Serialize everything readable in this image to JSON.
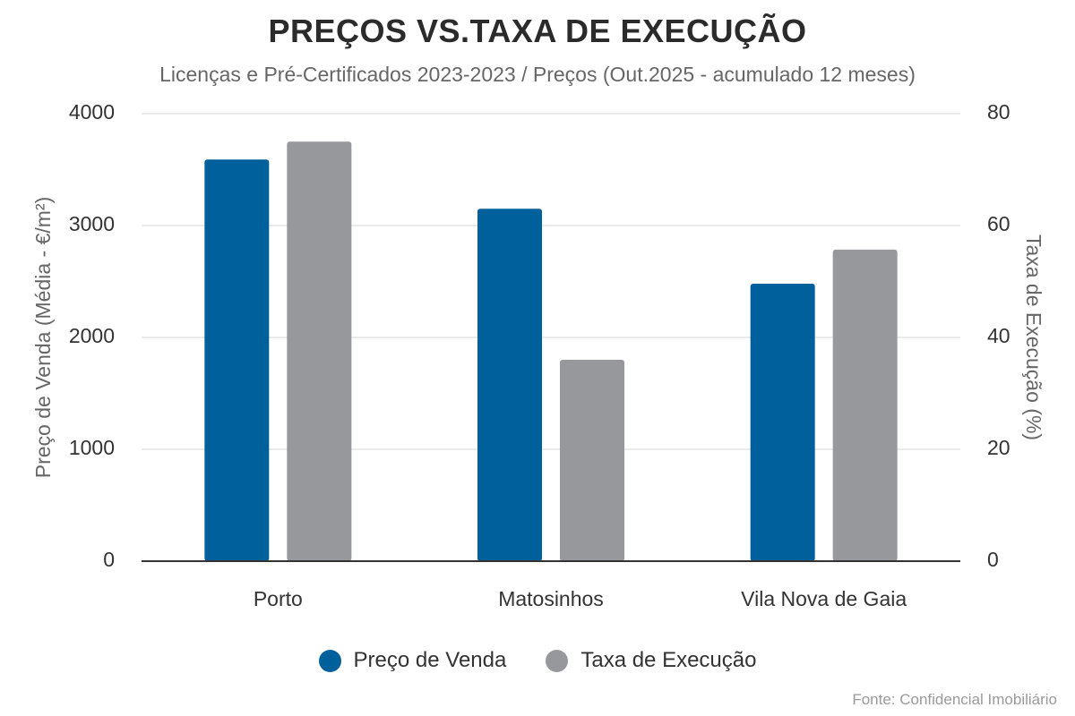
{
  "chart_data": {
    "type": "bar",
    "title": "PREÇOS VS.TAXA DE EXECUÇÃO",
    "subtitle": "Licenças e Pré-Certificados 2023-2023 / Preços (Out.2025 - acumulado 12 meses)",
    "categories": [
      "Porto",
      "Matosinhos",
      "Vila Nova de Gaia"
    ],
    "series": [
      {
        "name": "Preço de Venda",
        "axis": "left",
        "color": "#00609c",
        "values": [
          3590,
          3150,
          2480
        ]
      },
      {
        "name": "Taxa de Execução",
        "axis": "right",
        "color": "#97989c",
        "values": [
          75,
          36,
          55.7
        ]
      }
    ],
    "ylabel": "Preço de Venda (Média - €/m²)",
    "ylim": [
      0,
      4000
    ],
    "yticks": [
      "0",
      "1000",
      "2000",
      "3000",
      "4000"
    ],
    "y2label": "Taxa de Execução (%)",
    "y2lim": [
      0,
      80
    ],
    "y2ticks": [
      "0",
      "20",
      "40",
      "60",
      "80"
    ],
    "grid": true,
    "legend_position": "bottom-center",
    "source": "Fonte: Confidencial Imobiliário"
  }
}
